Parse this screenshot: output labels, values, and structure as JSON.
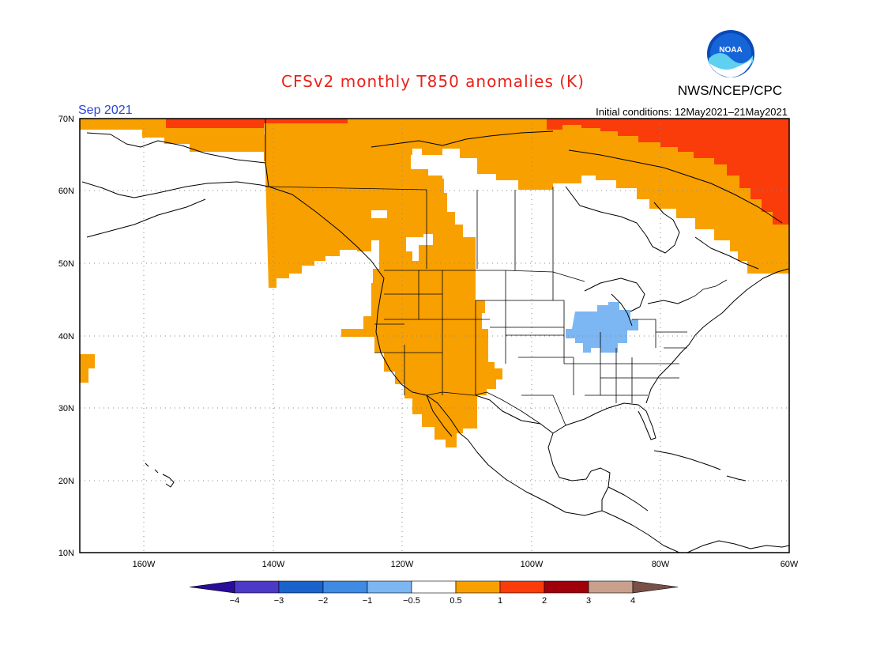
{
  "header": {
    "title": "CFSv2 monthly T850 anomalies (K)",
    "org": "NWS/NCEP/CPC",
    "logo_text": "NOAA",
    "valid_month": "Sep 2021",
    "initial_conditions": "Initial conditions: 12May2021–21May2021"
  },
  "colors": {
    "title": "#e8221a",
    "month": "#2b45d8",
    "light_blue": "#7cb6f3",
    "orange": "#f8a000",
    "red_orange": "#fa3c0a"
  },
  "axes": {
    "lat_labels": [
      "70N",
      "60N",
      "50N",
      "40N",
      "30N",
      "20N",
      "10N"
    ],
    "lon_labels": [
      "160W",
      "140W",
      "120W",
      "100W",
      "80W",
      "60W"
    ]
  },
  "colorbar": {
    "labels": [
      "−4",
      "−3",
      "−2",
      "−1",
      "−0.5",
      "0.5",
      "1",
      "2",
      "3",
      "4"
    ],
    "colors": [
      "#2a0c9b",
      "#4b39c8",
      "#1a63cc",
      "#3f8ae2",
      "#7cb6f3",
      "#ffffff",
      "#f8a000",
      "#fa3c0a",
      "#a0000a",
      "#c8a08c",
      "#785048"
    ]
  },
  "map": {
    "lon_range": [
      -171,
      -60
    ],
    "lat_range": [
      10,
      70
    ],
    "anomaly_regions": [
      {
        "id": "west-warm",
        "category": "0.5 to 1"
      },
      {
        "id": "north-warm",
        "category": "0.5 to 1"
      },
      {
        "id": "hawaii-warm",
        "category": "0.5 to 1"
      },
      {
        "id": "arctic-strong",
        "category": "1 to 2"
      },
      {
        "id": "midwest-cool",
        "category": "-1 to -0.5"
      }
    ]
  }
}
